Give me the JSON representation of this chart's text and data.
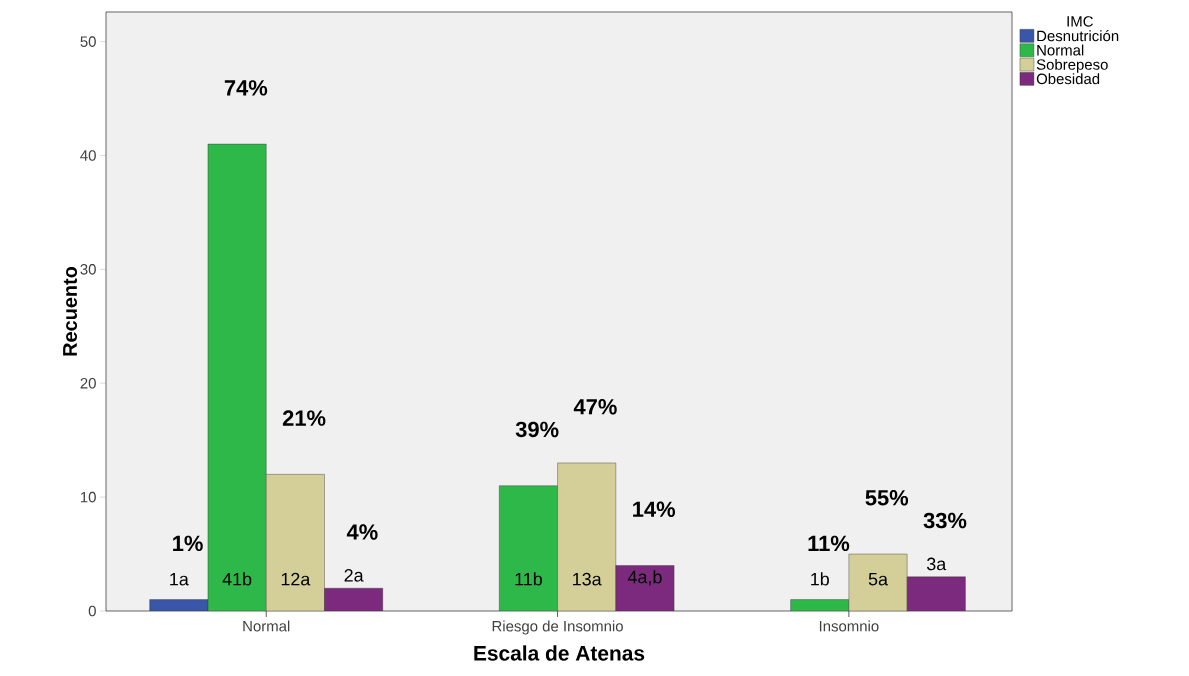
{
  "chart_data": {
    "type": "bar",
    "xlabel": "Escala de Atenas",
    "ylabel": "Recuento",
    "legend_title": "IMC",
    "categories": [
      "Normal",
      "Riesgo de Insomnio",
      "Insomnio"
    ],
    "series": [
      {
        "name": "Desnutrición",
        "color": "#3a56a8",
        "values": [
          1,
          null,
          null
        ],
        "value_labels": [
          "1a",
          null,
          null
        ]
      },
      {
        "name": "Normal",
        "color": "#2fb84a",
        "values": [
          41,
          11,
          1
        ],
        "value_labels": [
          "41b",
          "11b",
          "1b"
        ]
      },
      {
        "name": "Sobrepeso",
        "color": "#d4cf98",
        "values": [
          12,
          13,
          5
        ],
        "value_labels": [
          "12a",
          "13a",
          "5a"
        ]
      },
      {
        "name": "Obesidad",
        "color": "#7b2a7d",
        "values": [
          2,
          4,
          3
        ],
        "value_labels": [
          "2a",
          "4a,b",
          "3a"
        ]
      }
    ],
    "ylim": [
      0,
      52.6
    ],
    "yticks": [
      0,
      10,
      20,
      30,
      40,
      50
    ],
    "grid": false,
    "legend": "top right",
    "annotations": [
      "1%",
      "74%",
      "21%",
      "4%",
      "39%",
      "47%",
      "14%",
      "11%",
      "55%",
      "33%"
    ]
  }
}
